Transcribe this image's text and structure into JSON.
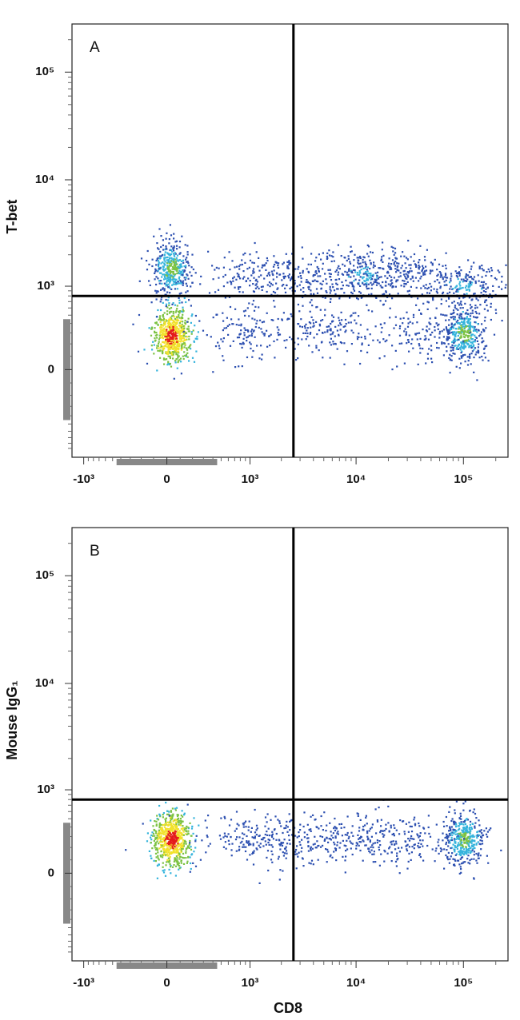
{
  "chart_data": [
    {
      "type": "density",
      "panel_label": "A",
      "y_label": "T-bet",
      "xscale": "biexponential",
      "yscale": "biexponential",
      "xlim": [
        -1300,
        260000
      ],
      "ylim": [
        -1100,
        280000
      ],
      "xticks": [
        {
          "value": -1000,
          "label": "-10³"
        },
        0,
        {
          "value": 1000,
          "label": "10³"
        },
        {
          "value": 10000,
          "label": "10⁴"
        },
        {
          "value": 100000,
          "label": "10⁵"
        }
      ],
      "yticks": [
        0,
        {
          "value": 1000,
          "label": "10³"
        },
        {
          "value": 10000,
          "label": "10⁴"
        },
        {
          "value": 100000,
          "label": "10⁵"
        }
      ],
      "gates": {
        "x": 2600,
        "y": 800
      },
      "colormap": [
        "#e41a1c",
        "#f2e22c",
        "#7cc242",
        "#35b4dc",
        "#2c4fb0"
      ],
      "populations": [
        {
          "x": 30,
          "y": 280,
          "color": "#e41a1c"
        },
        {
          "x": 30,
          "y": 1500,
          "color": "#7cc242"
        },
        {
          "x": 100000,
          "y": 300,
          "color": "#7cc242"
        },
        {
          "x": 100000,
          "y": 1000,
          "color": "#35b4dc"
        },
        {
          "x": 1000,
          "y": 1300,
          "color": "#2c4fb0"
        },
        {
          "x": 3000,
          "y": 1300,
          "color": "#2c4fb0"
        },
        {
          "x": 12000,
          "y": 1300,
          "color": "#35b4dc"
        },
        {
          "x": 25000,
          "y": 1300,
          "color": "#2c4fb0"
        },
        {
          "x": 1000,
          "y": 300,
          "color": "#2c4fb0"
        },
        {
          "x": 5000,
          "y": 350,
          "color": "#2c4fb0"
        },
        {
          "x": 40000,
          "y": 300,
          "color": "#2c4fb0"
        }
      ]
    },
    {
      "type": "density",
      "panel_label": "B",
      "y_label": "Mouse IgG₁",
      "x_label": "CD8",
      "xscale": "biexponential",
      "yscale": "biexponential",
      "xlim": [
        -1300,
        260000
      ],
      "ylim": [
        -1100,
        280000
      ],
      "xticks": [
        {
          "value": -1000,
          "label": "-10³"
        },
        0,
        {
          "value": 1000,
          "label": "10³"
        },
        {
          "value": 10000,
          "label": "10⁴"
        },
        {
          "value": 100000,
          "label": "10⁵"
        }
      ],
      "yticks": [
        0,
        {
          "value": 1000,
          "label": "10³"
        },
        {
          "value": 10000,
          "label": "10⁴"
        },
        {
          "value": 100000,
          "label": "10⁵"
        }
      ],
      "gates": {
        "x": 2600,
        "y": 800
      },
      "colormap": [
        "#e41a1c",
        "#f2e22c",
        "#7cc242",
        "#35b4dc",
        "#2c4fb0"
      ],
      "populations": [
        {
          "x": 30,
          "y": 280,
          "color": "#e41a1c"
        },
        {
          "x": 100000,
          "y": 280,
          "color": "#7cc242"
        },
        {
          "x": 1000,
          "y": 300,
          "color": "#2c4fb0"
        },
        {
          "x": 3000,
          "y": 270,
          "color": "#2c4fb0"
        },
        {
          "x": 10000,
          "y": 280,
          "color": "#2c4fb0"
        },
        {
          "x": 30000,
          "y": 280,
          "color": "#2c4fb0"
        }
      ]
    }
  ]
}
